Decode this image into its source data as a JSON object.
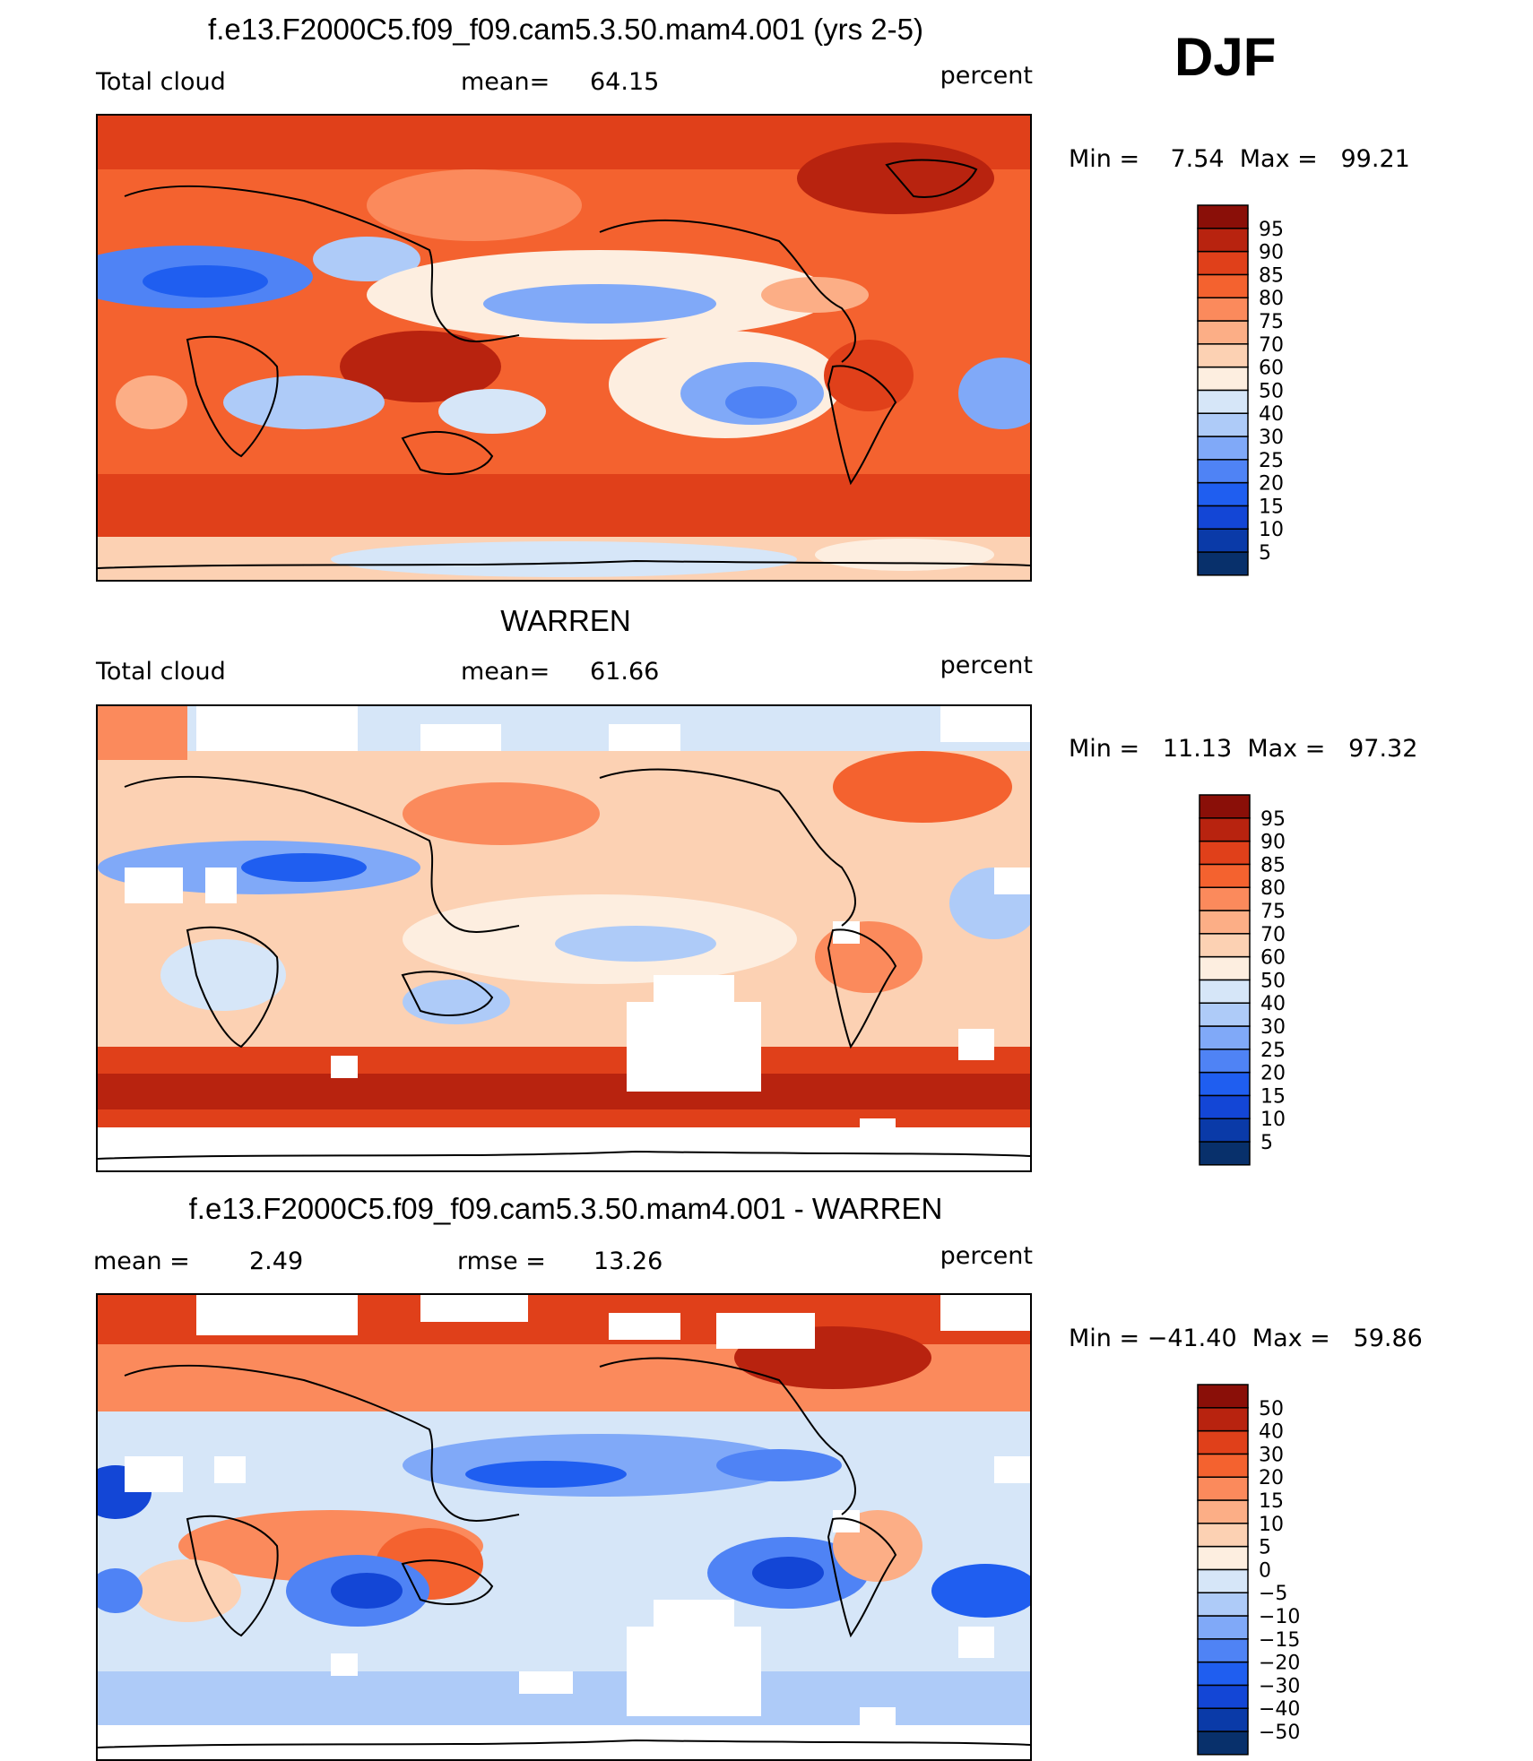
{
  "season": "DJF",
  "panels": [
    {
      "id": "model",
      "title": "f.e13.F2000C5.f09_f09.cam5.3.50.mam4.001 (yrs 2-5)",
      "left_label": "Total cloud",
      "stat1_label": "mean=",
      "stat1_value": "64.15",
      "stat2_label": "",
      "stat2_value": "",
      "units": "percent",
      "min_max": "Min =    7.54  Max =   99.21",
      "colorbar": {
        "colors": [
          "#08306b",
          "#0a3aa8",
          "#1346d6",
          "#1f5ef0",
          "#4f83f5",
          "#80a9f8",
          "#aecbf8",
          "#d6e6f8",
          "#fdeee0",
          "#fcd1b3",
          "#fcae86",
          "#fb8a5c",
          "#f4622f",
          "#e0401a",
          "#b8230f",
          "#8a0f08"
        ],
        "labels": [
          "5",
          "10",
          "15",
          "20",
          "25",
          "30",
          "40",
          "50",
          "60",
          "70",
          "75",
          "80",
          "85",
          "90",
          "95"
        ]
      }
    },
    {
      "id": "obs",
      "title": "WARREN",
      "left_label": "Total cloud",
      "stat1_label": "mean=",
      "stat1_value": "61.66",
      "stat2_label": "",
      "stat2_value": "",
      "units": "percent",
      "min_max": "Min =   11.13  Max =   97.32",
      "colorbar": {
        "colors": [
          "#08306b",
          "#0a3aa8",
          "#1346d6",
          "#1f5ef0",
          "#4f83f5",
          "#80a9f8",
          "#aecbf8",
          "#d6e6f8",
          "#fdeee0",
          "#fcd1b3",
          "#fcae86",
          "#fb8a5c",
          "#f4622f",
          "#e0401a",
          "#b8230f",
          "#8a0f08"
        ],
        "labels": [
          "5",
          "10",
          "15",
          "20",
          "25",
          "30",
          "40",
          "50",
          "60",
          "70",
          "75",
          "80",
          "85",
          "90",
          "95"
        ]
      }
    },
    {
      "id": "diff",
      "title": "f.e13.F2000C5.f09_f09.cam5.3.50.mam4.001 - WARREN",
      "left_label": "",
      "stat1_label": "mean =",
      "stat1_value": "2.49",
      "stat2_label": "rmse =",
      "stat2_value": "13.26",
      "units": "percent",
      "min_max": "Min = −41.40  Max =   59.86",
      "colorbar": {
        "colors": [
          "#08306b",
          "#0a3aa8",
          "#1346d6",
          "#1f5ef0",
          "#4f83f5",
          "#80a9f8",
          "#aecbf8",
          "#d6e6f8",
          "#fdeee0",
          "#fcd1b3",
          "#fcae86",
          "#fb8a5c",
          "#f4622f",
          "#e0401a",
          "#b8230f",
          "#8a0f08"
        ],
        "labels": [
          "−50",
          "−40",
          "−30",
          "−20",
          "−15",
          "−10",
          "−5",
          "0",
          "5",
          "10",
          "15",
          "20",
          "30",
          "40",
          "50"
        ]
      }
    }
  ]
}
